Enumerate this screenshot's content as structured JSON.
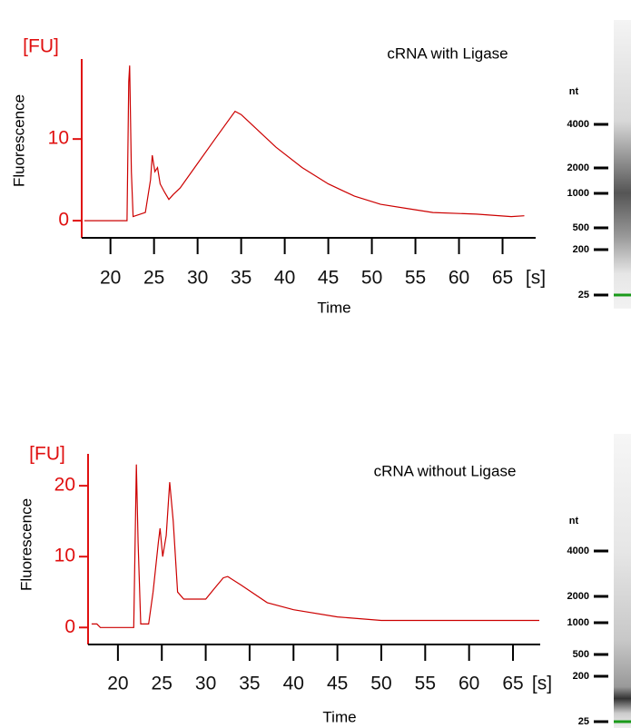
{
  "chart_data": [
    {
      "type": "line",
      "title": "cRNA with Ligase",
      "xlabel": "Time",
      "ylabel": "Fluorescence",
      "x_unit": "[s]",
      "y_unit": "[FU]",
      "x": [
        17,
        21.9,
        22.1,
        22.2,
        22.4,
        22.6,
        24,
        24.6,
        24.8,
        25.1,
        25.4,
        25.7,
        26.2,
        26.7,
        27.2,
        28,
        30,
        32,
        34.3,
        35,
        36,
        39,
        42,
        45,
        48,
        51,
        54,
        57,
        62,
        66,
        67.5
      ],
      "series": [
        {
          "color": "#cc0000",
          "values": [
            0,
            0,
            17,
            19,
            6,
            0.5,
            1,
            5,
            8,
            6,
            6.5,
            4.5,
            3.5,
            2.6,
            3.2,
            4,
            7,
            10,
            13.4,
            13,
            12,
            9,
            6.5,
            4.5,
            3,
            2,
            1.5,
            1,
            0.8,
            0.5,
            0.6
          ]
        }
      ],
      "xlim": [
        16.7,
        68.8
      ],
      "ylim": [
        -2.1,
        19.8
      ],
      "xticks": [
        20,
        25,
        30,
        35,
        40,
        45,
        50,
        55,
        60,
        65
      ],
      "yticks": [
        0,
        10
      ],
      "gel": {
        "unit": "nt",
        "markers": [
          4000,
          2000,
          1000,
          500,
          200,
          25
        ]
      }
    },
    {
      "type": "line",
      "title": "cRNA without Ligase",
      "xlabel": "Time",
      "ylabel": "Fluorescence",
      "x_unit": "[s]",
      "y_unit": "[FU]",
      "x": [
        17,
        17.6,
        18,
        21.8,
        22.1,
        22.3,
        22.6,
        23.5,
        24,
        24.6,
        24.8,
        25.1,
        25.5,
        25.9,
        26.3,
        26.8,
        27.5,
        30,
        31,
        32,
        32.5,
        34,
        37,
        40,
        45,
        50,
        68
      ],
      "series": [
        {
          "color": "#cc0000",
          "values": [
            0.5,
            0.5,
            0,
            0,
            23,
            12,
            0.5,
            0.5,
            5,
            12,
            14,
            10,
            13,
            20.5,
            15,
            5,
            4,
            4,
            5.5,
            7,
            7.2,
            6,
            3.5,
            2.5,
            1.5,
            1,
            1
          ]
        }
      ],
      "xlim": [
        16.6,
        68.1
      ],
      "ylim": [
        -2.4,
        24.5
      ],
      "xticks": [
        20,
        25,
        30,
        35,
        40,
        45,
        50,
        55,
        60,
        65
      ],
      "yticks": [
        0,
        10,
        20
      ],
      "gel": {
        "unit": "nt",
        "markers": [
          4000,
          2000,
          1000,
          500,
          200,
          25
        ]
      }
    }
  ]
}
